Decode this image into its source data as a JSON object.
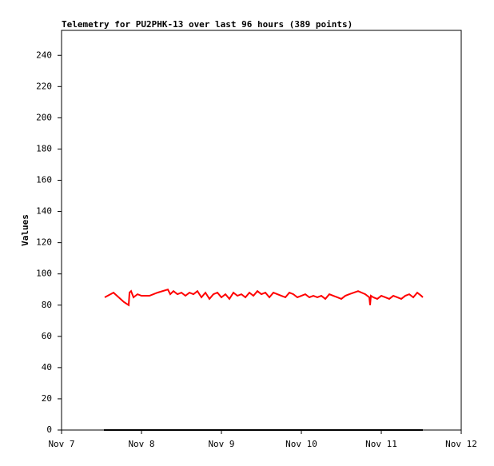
{
  "chart_data": {
    "type": "line",
    "title": "Telemetry for PU2PHK-13 over last 96 hours (389 points)",
    "y_label": "Values",
    "xlim": [
      7,
      12
    ],
    "xticks": [
      {
        "value": 7,
        "label": "Nov 7"
      },
      {
        "value": 8,
        "label": "Nov 8"
      },
      {
        "value": 9,
        "label": "Nov 9"
      },
      {
        "value": 10,
        "label": "Nov 10"
      },
      {
        "value": 11,
        "label": "Nov 11"
      },
      {
        "value": 12,
        "label": "Nov 12"
      }
    ],
    "ylim": [
      0,
      256
    ],
    "yticks": [
      0,
      20,
      40,
      60,
      80,
      100,
      120,
      140,
      160,
      180,
      200,
      220,
      240
    ],
    "series": [
      {
        "color": "#ff0000",
        "x": [
          7.54,
          7.65,
          7.78,
          7.84,
          7.85,
          7.87,
          7.9,
          7.95,
          8.0,
          8.1,
          8.2,
          8.33,
          8.36,
          8.4,
          8.45,
          8.5,
          8.55,
          8.6,
          8.65,
          8.7,
          8.75,
          8.8,
          8.85,
          8.9,
          8.95,
          9.0,
          9.05,
          9.1,
          9.15,
          9.2,
          9.25,
          9.3,
          9.35,
          9.4,
          9.45,
          9.5,
          9.55,
          9.6,
          9.65,
          9.7,
          9.75,
          9.8,
          9.85,
          9.9,
          9.95,
          10.0,
          10.05,
          10.1,
          10.15,
          10.2,
          10.25,
          10.3,
          10.35,
          10.4,
          10.45,
          10.5,
          10.55,
          10.6,
          10.71,
          10.8,
          10.85,
          10.86,
          10.87,
          10.9,
          10.95,
          11.0,
          11.05,
          11.1,
          11.15,
          11.2,
          11.25,
          11.3,
          11.35,
          11.4,
          11.45,
          11.5,
          11.52
        ],
        "values": [
          85,
          88,
          82,
          80,
          88,
          89,
          85,
          87,
          86,
          86,
          88,
          90,
          87,
          89,
          87,
          88,
          86,
          88,
          87,
          89,
          85,
          88,
          84,
          87,
          88,
          85,
          87,
          84,
          88,
          86,
          87,
          85,
          88,
          86,
          89,
          87,
          88,
          85,
          88,
          87,
          86,
          85,
          88,
          87,
          85,
          86,
          87,
          85,
          86,
          85,
          86,
          84,
          87,
          86,
          85,
          84,
          86,
          87,
          89,
          87,
          85,
          80,
          86,
          85,
          84,
          86,
          85,
          84,
          86,
          85,
          84,
          86,
          87,
          85,
          88,
          86,
          85
        ]
      },
      {
        "color": "#000000",
        "x": [
          7.53,
          11.52
        ],
        "values": [
          0,
          0
        ]
      }
    ]
  }
}
